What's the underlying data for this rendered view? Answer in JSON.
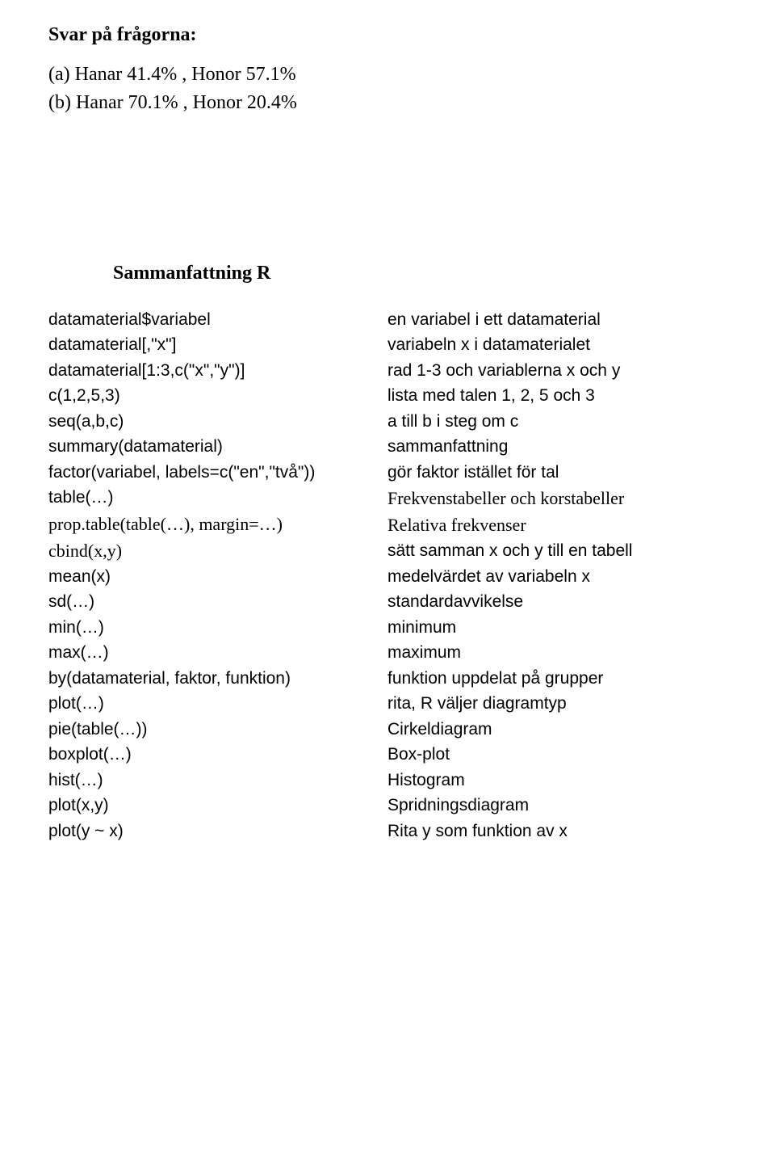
{
  "heading": "Svar på frågorna:",
  "answers": {
    "a": "(a) Hanar 41.4% , Honor 57.1%",
    "b": "(b) Hanar 70.1% , Honor 20.4%"
  },
  "subheading": "Sammanfattning R",
  "rows": [
    {
      "left": "datamaterial$variabel",
      "right": "en variabel i ett datamaterial",
      "lfont": "arial",
      "rfont": "arial"
    },
    {
      "left": "datamaterial[,\"x\"]",
      "right": "variabeln x i datamaterialet",
      "lfont": "arial",
      "rfont": "arial"
    },
    {
      "left": "datamaterial[1:3,c(\"x\",\"y\")]",
      "right": "rad 1-3 och variablerna x och y",
      "lfont": "arial",
      "rfont": "arial"
    },
    {
      "left": "c(1,2,5,3)",
      "right": "lista med talen 1, 2, 5 och 3",
      "lfont": "arial",
      "rfont": "arial"
    },
    {
      "left": "seq(a,b,c)",
      "right": "a till b i steg om c",
      "lfont": "arial",
      "rfont": "arial"
    },
    {
      "left": "summary(datamaterial)",
      "right": "sammanfattning",
      "lfont": "arial",
      "rfont": "arial"
    },
    {
      "left": "factor(variabel, labels=c(\"en\",\"två\"))",
      "right": "gör faktor istället för tal",
      "lfont": "arial",
      "rfont": "arial"
    },
    {
      "left": "table(…)",
      "right": "Frekvenstabeller och korstabeller",
      "lfont": "arial",
      "rfont": "times"
    },
    {
      "left": "prop.table(table(…), margin=…)",
      "right": "Relativa frekvenser",
      "lfont": "times",
      "rfont": "times"
    },
    {
      "left": "cbind(x,y)",
      "right": "sätt samman x och y till en tabell",
      "lfont": "times",
      "rfont": "arial"
    },
    {
      "left": "mean(x)",
      "right": "medelvärdet av variabeln x",
      "lfont": "arial",
      "rfont": "arial"
    },
    {
      "left": "sd(…)",
      "right": "standardavvikelse",
      "lfont": "arial",
      "rfont": "arial"
    },
    {
      "left": "min(…)",
      "right": "minimum",
      "lfont": "arial",
      "rfont": "arial"
    },
    {
      "left": "max(…)",
      "right": "maximum",
      "lfont": "arial",
      "rfont": "arial"
    },
    {
      "left": "by(datamaterial, faktor, funktion)",
      "right": "funktion uppdelat på grupper",
      "lfont": "arial",
      "rfont": "arial"
    },
    {
      "left": "plot(…)",
      "right": "rita, R väljer diagramtyp",
      "lfont": "arial",
      "rfont": "arial"
    },
    {
      "left": "pie(table(…))",
      "right": "Cirkeldiagram",
      "lfont": "arial",
      "rfont": "arial"
    },
    {
      "left": "boxplot(…)",
      "right": "Box-plot",
      "lfont": "arial",
      "rfont": "arial"
    },
    {
      "left": "hist(…)",
      "right": "Histogram",
      "lfont": "arial",
      "rfont": "arial"
    },
    {
      "left": "plot(x,y)",
      "right": "Spridningsdiagram",
      "lfont": "arial",
      "rfont": "arial"
    },
    {
      "left": "plot(y ~ x)",
      "right": "Rita y som funktion av x",
      "lfont": "arial",
      "rfont": "arial"
    }
  ]
}
